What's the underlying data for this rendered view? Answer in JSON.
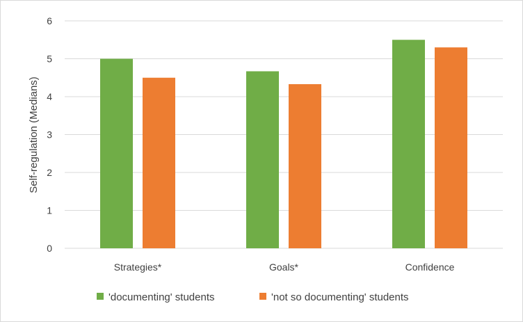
{
  "chart_data": {
    "type": "bar",
    "title": "",
    "xlabel": "",
    "ylabel": "Self-regulation (Medians)",
    "categories": [
      "Strategies*",
      "Goals*",
      "Confidence"
    ],
    "series": [
      {
        "name": "'documenting' students",
        "color": "#70ad47",
        "values": [
          5.0,
          4.67,
          5.5
        ]
      },
      {
        "name": "'not so documenting' students",
        "color": "#ed7d31",
        "values": [
          4.5,
          4.33,
          5.3
        ]
      }
    ],
    "ylim": [
      0,
      6
    ],
    "yticks": [
      "0",
      "1",
      "2",
      "3",
      "4",
      "5",
      "6"
    ],
    "grid": true,
    "legend_position": "bottom"
  }
}
